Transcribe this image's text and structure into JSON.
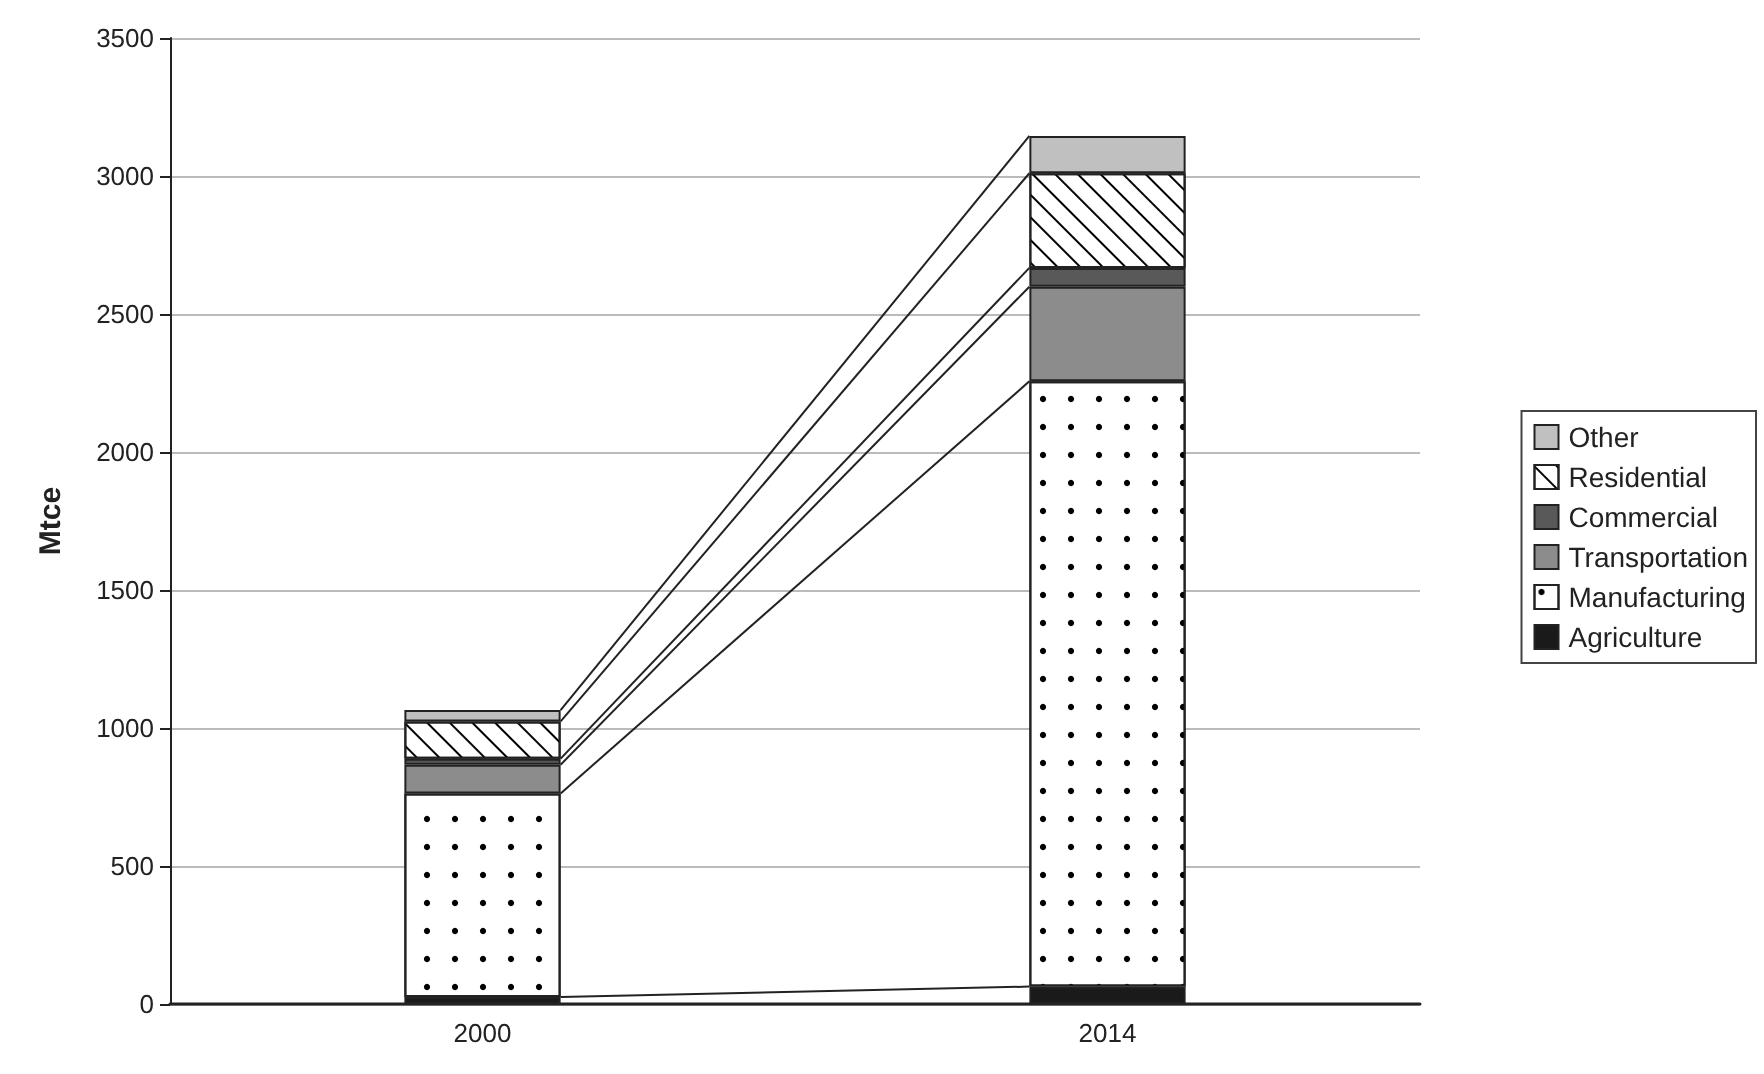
{
  "chart_data": {
    "type": "bar",
    "stacked": true,
    "categories": [
      "2000",
      "2014"
    ],
    "ylabel": "Mtce",
    "ylim": [
      0,
      3500
    ],
    "yticks": [
      0,
      500,
      1000,
      1500,
      2000,
      2500,
      3000,
      3500
    ],
    "grid": "y",
    "legend": "right",
    "series": [
      {
        "name": "Agriculture",
        "color": "#1a1a1a",
        "values": [
          25,
          63
        ]
      },
      {
        "name": "Manufacturing",
        "color": "#ffffff",
        "values": [
          738,
          2193
        ]
      },
      {
        "name": "Transportation",
        "color": "#8c8c8c",
        "values": [
          104,
          343
        ]
      },
      {
        "name": "Commercial",
        "color": "#595959",
        "values": [
          22,
          68
        ]
      },
      {
        "name": "Residential",
        "color": "#ffffff",
        "values": [
          135,
          343
        ]
      },
      {
        "name": "Other",
        "color": "#c0c0c0",
        "values": [
          41,
          135
        ]
      }
    ]
  }
}
